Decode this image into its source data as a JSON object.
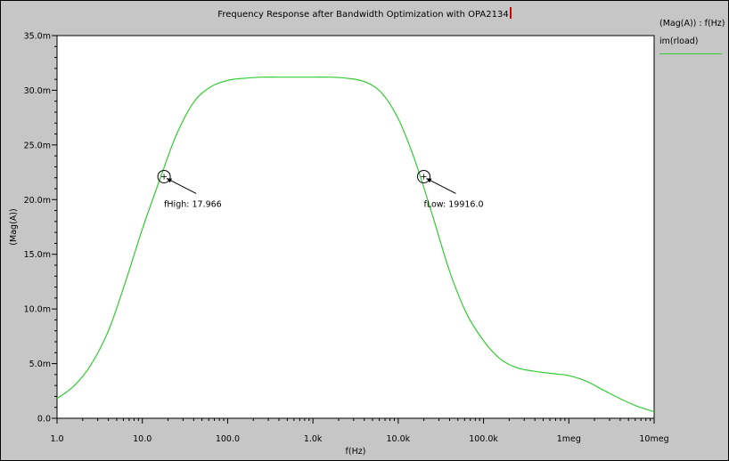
{
  "chart_data": {
    "type": "line",
    "title": "Frequency Response after Bandwidth Optimization with OPA2134",
    "xlabel": "f(Hz)",
    "ylabel": "(Mag(A))",
    "x_scale": "log",
    "xlim": [
      1,
      10000000
    ],
    "ylim": [
      0,
      35
    ],
    "x_ticks": [
      1,
      10,
      100,
      1000,
      10000,
      100000,
      1000000,
      10000000
    ],
    "x_tick_labels": [
      "1.0",
      "10.0",
      "100.0",
      "1.0k",
      "10.0k",
      "100.0k",
      "1meg",
      "10meg"
    ],
    "y_ticks": [
      0,
      5,
      10,
      15,
      20,
      25,
      30,
      35
    ],
    "y_tick_labels": [
      "0.0",
      "5.0m",
      "10.0m",
      "15.0m",
      "20.0m",
      "25.0m",
      "30.0m",
      "35.0m"
    ],
    "grid": false,
    "legend": {
      "title": "(Mag(A)) : f(Hz)",
      "placement": "top-right"
    },
    "series": [
      {
        "name": "im(rload)",
        "color": "#33cc33",
        "x": [
          1,
          1.6,
          2.5,
          4,
          6.3,
          10,
          15.8,
          25,
          40,
          63,
          100,
          158,
          251,
          398,
          631,
          1000,
          1585,
          2512,
          3981,
          6310,
          10000,
          15850,
          25120,
          39810,
          63100,
          100000,
          158500,
          251200,
          398100,
          631000,
          1000000,
          1585000,
          2512000,
          3981000,
          6310000,
          10000000
        ],
        "values": [
          1.8,
          3.0,
          4.9,
          8.0,
          12.4,
          17.3,
          21.7,
          25.9,
          28.9,
          30.3,
          30.9,
          31.1,
          31.2,
          31.2,
          31.2,
          31.2,
          31.2,
          31.1,
          30.8,
          29.8,
          27.4,
          23.5,
          18.6,
          13.5,
          9.6,
          7.1,
          5.4,
          4.6,
          4.3,
          4.1,
          3.9,
          3.4,
          2.6,
          1.8,
          1.1,
          0.6
        ]
      }
    ],
    "annotations": [
      {
        "label": "fHigh: 17.966",
        "x": 17.966,
        "y": 22.1
      },
      {
        "label": "fLow: 19916.0",
        "x": 19916.0,
        "y": 22.1
      }
    ]
  }
}
